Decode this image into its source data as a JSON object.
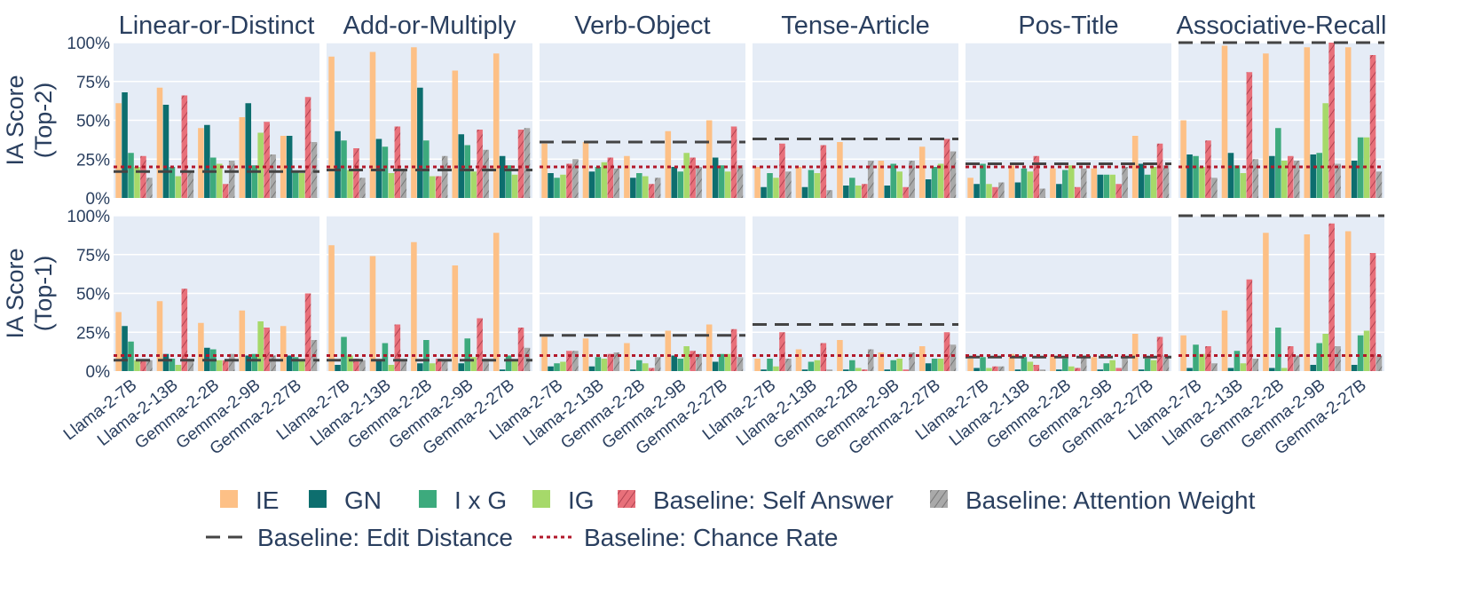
{
  "chart_data": {
    "type": "bar",
    "tasks": [
      "Linear-or-Distinct",
      "Add-or-Multiply",
      "Verb-Object",
      "Tense-Article",
      "Pos-Title",
      "Associative-Recall"
    ],
    "models": [
      "Llama-2-7B",
      "Llama-2-13B",
      "Gemma-2-2B",
      "Gemma-2-9B",
      "Gemma-2-27B"
    ],
    "yticks": [
      "0%",
      "25%",
      "50%",
      "75%",
      "100%"
    ],
    "ylim": [
      0,
      100
    ],
    "series": [
      {
        "key": "ie",
        "name": "IE",
        "color": "#fdc086",
        "hatch": false
      },
      {
        "key": "gn",
        "name": "GN",
        "color": "#0d6e6e",
        "hatch": false
      },
      {
        "key": "ixg",
        "name": "I x G",
        "color": "#3daa7d",
        "hatch": false
      },
      {
        "key": "ig",
        "name": "IG",
        "color": "#a6d96a",
        "hatch": false
      },
      {
        "key": "self",
        "name": "Baseline: Self Answer",
        "color": "#e8707a",
        "hatch": true
      },
      {
        "key": "attn",
        "name": "Baseline: Attention Weight",
        "color": "#a9a9a9",
        "hatch": true
      }
    ],
    "lines": [
      {
        "key": "edit",
        "name": "Baseline: Edit Distance",
        "color": "#444444",
        "dash": "16,9"
      },
      {
        "key": "chance",
        "name": "Baseline: Chance Rate",
        "color": "#b2182b",
        "dash": "4,4"
      }
    ],
    "rows": [
      {
        "label_line1": "IA Score",
        "label_line2": "(Top-2)",
        "panels": [
          {
            "edit": 17,
            "chance": 20,
            "values": [
              [
                61,
                68,
                29,
                20,
                27,
                13
              ],
              [
                71,
                60,
                20,
                14,
                66,
                17
              ],
              [
                45,
                47,
                26,
                22,
                9,
                24
              ],
              [
                52,
                61,
                21,
                42,
                49,
                28
              ],
              [
                40,
                40,
                17,
                16,
                65,
                36
              ]
            ]
          },
          {
            "edit": 18,
            "chance": 20,
            "values": [
              [
                91,
                43,
                37,
                18,
                32,
                13
              ],
              [
                94,
                38,
                33,
                16,
                46,
                18
              ],
              [
                97,
                71,
                37,
                14,
                14,
                27
              ],
              [
                82,
                41,
                34,
                17,
                44,
                31
              ],
              [
                93,
                27,
                21,
                15,
                44,
                45
              ]
            ]
          },
          {
            "edit": 36,
            "chance": 20,
            "values": [
              [
                35,
                16,
                13,
                15,
                22,
                25
              ],
              [
                36,
                17,
                20,
                23,
                26,
                19
              ],
              [
                27,
                13,
                16,
                14,
                9,
                13
              ],
              [
                43,
                20,
                17,
                29,
                26,
                20
              ],
              [
                50,
                26,
                21,
                17,
                46,
                21
              ]
            ]
          },
          {
            "edit": 38,
            "chance": 20,
            "values": [
              [
                20,
                7,
                16,
                13,
                35,
                17
              ],
              [
                20,
                7,
                18,
                16,
                34,
                5
              ],
              [
                36,
                8,
                13,
                8,
                9,
                24
              ],
              [
                24,
                8,
                22,
                17,
                7,
                24
              ],
              [
                33,
                12,
                20,
                22,
                38,
                30
              ]
            ]
          },
          {
            "edit": 22,
            "chance": 20,
            "values": [
              [
                13,
                9,
                22,
                9,
                7,
                10
              ],
              [
                21,
                10,
                19,
                17,
                27,
                6
              ],
              [
                19,
                9,
                18,
                21,
                7,
                19
              ],
              [
                19,
                15,
                15,
                15,
                9,
                20
              ],
              [
                40,
                22,
                15,
                20,
                35,
                21
              ]
            ]
          },
          {
            "edit": 100,
            "chance": 20,
            "values": [
              [
                50,
                28,
                27,
                20,
                37,
                13
              ],
              [
                98,
                29,
                21,
                16,
                81,
                25
              ],
              [
                93,
                27,
                45,
                24,
                27,
                24
              ],
              [
                97,
                28,
                29,
                61,
                100,
                22
              ],
              [
                97,
                24,
                39,
                39,
                92,
                17
              ]
            ]
          }
        ]
      },
      {
        "label_line1": "IA Score",
        "label_line2": "(Top-1)",
        "panels": [
          {
            "edit": 7,
            "chance": 10,
            "values": [
              [
                38,
                29,
                19,
                7,
                7,
                7
              ],
              [
                45,
                11,
                8,
                4,
                53,
                8
              ],
              [
                31,
                15,
                14,
                7,
                7,
                11
              ],
              [
                39,
                10,
                11,
                32,
                28,
                10
              ],
              [
                29,
                10,
                9,
                7,
                50,
                20
              ]
            ]
          },
          {
            "edit": 7,
            "chance": 10,
            "values": [
              [
                81,
                4,
                22,
                10,
                8,
                7
              ],
              [
                74,
                7,
                18,
                4,
                30,
                7
              ],
              [
                83,
                5,
                20,
                5,
                8,
                7
              ],
              [
                68,
                5,
                21,
                9,
                34,
                8
              ],
              [
                89,
                1,
                10,
                7,
                28,
                15
              ]
            ]
          },
          {
            "edit": 23,
            "chance": 10,
            "values": [
              [
                22,
                3,
                5,
                6,
                13,
                13
              ],
              [
                21,
                3,
                9,
                8,
                11,
                12
              ],
              [
                18,
                1,
                7,
                5,
                2,
                9
              ],
              [
                26,
                10,
                8,
                16,
                13,
                11
              ],
              [
                30,
                6,
                11,
                11,
                27,
                9
              ]
            ]
          },
          {
            "edit": 30,
            "chance": 10,
            "values": [
              [
                8,
                1,
                8,
                3,
                25,
                8
              ],
              [
                14,
                1,
                6,
                7,
                18,
                1
              ],
              [
                20,
                1,
                7,
                2,
                1,
                14
              ],
              [
                12,
                1,
                7,
                8,
                1,
                12
              ],
              [
                16,
                5,
                8,
                8,
                25,
                17
              ]
            ]
          },
          {
            "edit": 9,
            "chance": 10,
            "values": [
              [
                8,
                2,
                9,
                2,
                3,
                3
              ],
              [
                11,
                1,
                9,
                6,
                4,
                1
              ],
              [
                10,
                1,
                8,
                3,
                2,
                10
              ],
              [
                9,
                1,
                5,
                7,
                2,
                9
              ],
              [
                24,
                1,
                8,
                7,
                22,
                10
              ]
            ]
          },
          {
            "edit": 100,
            "chance": 10,
            "values": [
              [
                23,
                2,
                17,
                11,
                16,
                5
              ],
              [
                39,
                2,
                13,
                5,
                59,
                8
              ],
              [
                89,
                2,
                28,
                2,
                16,
                10
              ],
              [
                88,
                4,
                18,
                24,
                95,
                16
              ],
              [
                90,
                4,
                23,
                26,
                76,
                10
              ]
            ]
          }
        ]
      }
    ]
  }
}
